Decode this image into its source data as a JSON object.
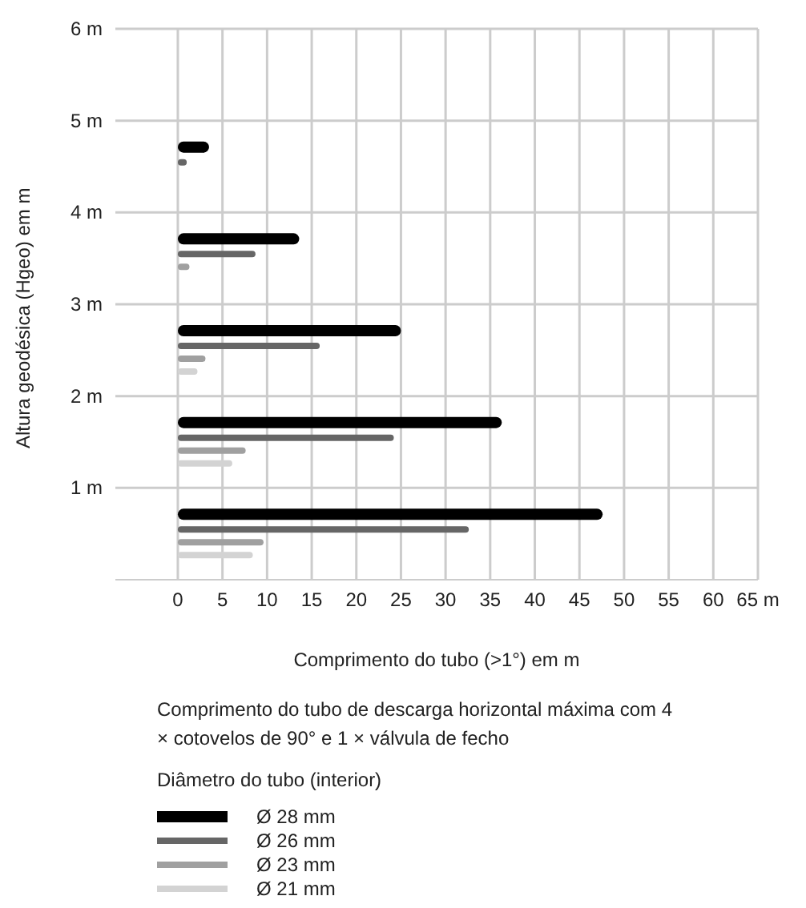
{
  "chart_data": {
    "type": "bar",
    "orientation": "horizontal",
    "xlabel": "Comprimento do tubo (>1°) em m",
    "ylabel": "Altura geodésica (Hgeo) em m",
    "legend_title": "Diâmetro do tubo (interior)",
    "annotations": [
      "Comprimento do tubo de descarga horizontal máxima com 4 × cotovelos de 90° e 1 × válvula de fecho"
    ],
    "categories": [
      "6 m",
      "5 m",
      "4 m",
      "3 m",
      "2 m",
      "1 m"
    ],
    "series": [
      {
        "name": "Ø 28 mm",
        "color": "#000000",
        "values": [
          null,
          3.5,
          13.6,
          25,
          36.3,
          47.6
        ]
      },
      {
        "name": "Ø 26 mm",
        "color": "#666666",
        "values": [
          null,
          1,
          8.7,
          15.9,
          24.2,
          32.6
        ]
      },
      {
        "name": "Ø 23 mm",
        "color": "#a0a0a0",
        "values": [
          null,
          null,
          1.3,
          3.1,
          7.6,
          9.6
        ]
      },
      {
        "name": "Ø 21 mm",
        "color": "#d3d3d3",
        "values": [
          null,
          null,
          null,
          2.2,
          6.1,
          8.4
        ]
      }
    ],
    "xlim": [
      -7,
      65
    ],
    "xticks": [
      0,
      5,
      10,
      15,
      20,
      25,
      30,
      35,
      40,
      45,
      50,
      55,
      60,
      {
        "value": 65,
        "label": "65 m"
      }
    ],
    "grid": true,
    "legend": "bottom"
  }
}
